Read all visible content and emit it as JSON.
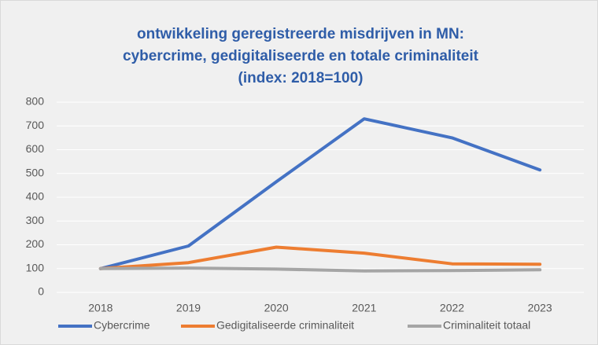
{
  "chart_data": {
    "type": "line",
    "title": [
      "ontwikkeling geregistreerde misdrijven in MN:",
      "cybercrime, gedigitaliseerde en totale criminaliteit",
      "(index: 2018=100)"
    ],
    "categories": [
      "2018",
      "2019",
      "2020",
      "2021",
      "2022",
      "2023"
    ],
    "series": [
      {
        "name": "Cybercrime",
        "color": "#4472c4",
        "values": [
          100,
          195,
          465,
          730,
          650,
          515
        ]
      },
      {
        "name": "Gedigitaliseerde criminaliteit",
        "color": "#ed7d31",
        "values": [
          100,
          125,
          190,
          165,
          120,
          118
        ]
      },
      {
        "name": "Criminaliteit totaal",
        "color": "#a5a5a5",
        "values": [
          100,
          102,
          98,
          90,
          92,
          95
        ]
      }
    ],
    "ylim": [
      0,
      800
    ],
    "yticks": [
      0,
      100,
      200,
      300,
      400,
      500,
      600,
      700,
      800
    ],
    "grid": true,
    "legend": "bottom"
  }
}
